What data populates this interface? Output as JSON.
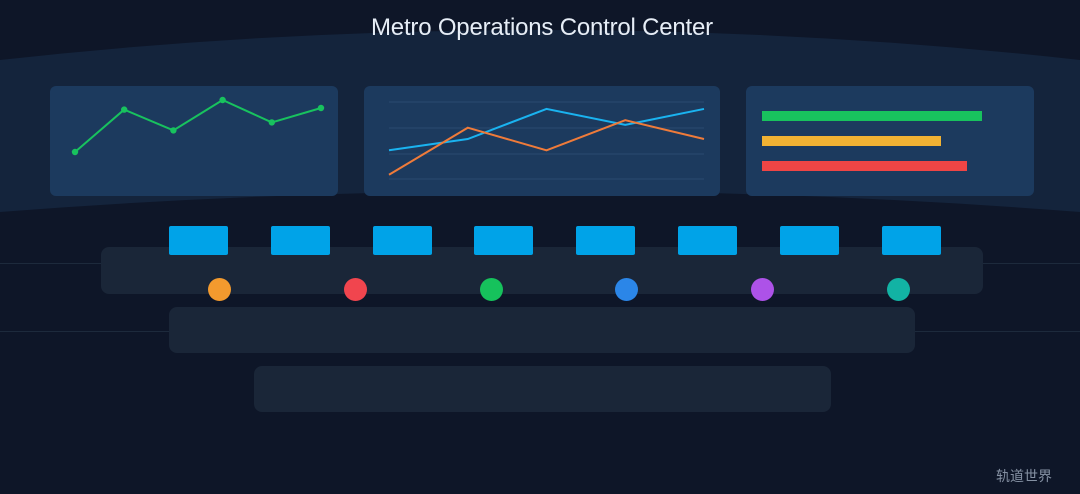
{
  "title": "Metro Operations Control Center",
  "watermark": "轨道世界",
  "colors": {
    "background": "#0e1628",
    "wall": "#14243c",
    "panel": "#1c3a5e",
    "desk": "#1a2638",
    "monitor": "#00a3e8",
    "green": "#18c25e",
    "cyan": "#1ab3f0",
    "orange": "#ef7b3a"
  },
  "panels": {
    "left": {
      "type": "line",
      "series": [
        {
          "color": "#18c25e",
          "values": [
            0.25,
            0.78,
            0.52,
            0.9,
            0.62,
            0.8
          ]
        }
      ]
    },
    "center": {
      "type": "line",
      "series": [
        {
          "color": "#1ab3f0",
          "values": [
            0.38,
            0.5,
            0.82,
            0.65,
            0.82
          ]
        },
        {
          "color": "#ef7b3a",
          "values": [
            0.12,
            0.62,
            0.38,
            0.7,
            0.5
          ]
        }
      ]
    },
    "right": {
      "type": "bar",
      "bars": [
        {
          "color": "#18c25e",
          "value": 0.86
        },
        {
          "color": "#f1b233",
          "value": 0.7
        },
        {
          "color": "#ee4545",
          "value": 0.8
        }
      ]
    }
  },
  "operators": [
    {
      "color": "#f39a2e"
    },
    {
      "color": "#f1454e"
    },
    {
      "color": "#16c25c"
    },
    {
      "color": "#2b86e8"
    },
    {
      "color": "#ad52e8"
    },
    {
      "color": "#12b3a4"
    }
  ],
  "monitor_count": 8
}
